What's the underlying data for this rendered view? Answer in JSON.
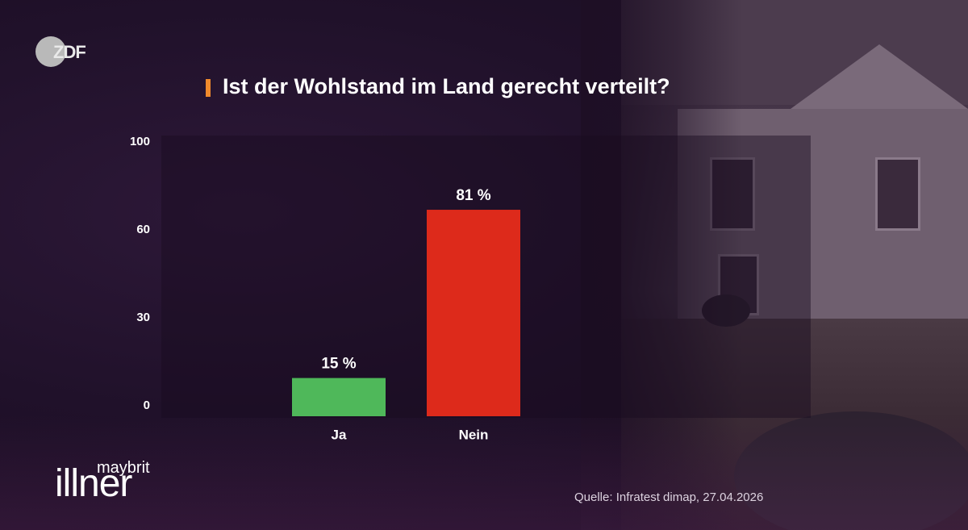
{
  "broadcaster_logo": "ZDF",
  "title": "Ist der Wohlstand im Land gerecht verteilt?",
  "colors": {
    "title_accent": "#f08a2c",
    "bar_ja": "#4fb85a",
    "bar_nein": "#dd2a1b",
    "background": "#1e0f25"
  },
  "chart_data": {
    "type": "bar",
    "title": "Ist der Wohlstand im Land gerecht verteilt?",
    "categories": [
      "Ja",
      "Nein"
    ],
    "values": [
      15,
      81
    ],
    "data_labels": [
      "15 %",
      "81 %"
    ],
    "yticks": [
      0,
      30,
      60,
      100
    ],
    "ylim": [
      0,
      100
    ],
    "xlabel": "",
    "ylabel": "",
    "grid": false,
    "legend": "none"
  },
  "show_logo": {
    "first": "maybrit",
    "last": "illner"
  },
  "source": "Quelle: Infratest dimap, 27.04.2026"
}
